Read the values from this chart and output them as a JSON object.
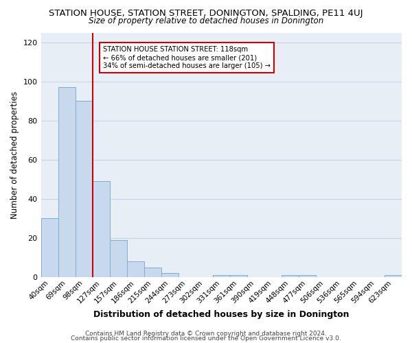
{
  "title": "STATION HOUSE, STATION STREET, DONINGTON, SPALDING, PE11 4UJ",
  "subtitle": "Size of property relative to detached houses in Donington",
  "xlabel": "Distribution of detached houses by size in Donington",
  "ylabel": "Number of detached properties",
  "bar_labels": [
    "40sqm",
    "69sqm",
    "98sqm",
    "127sqm",
    "157sqm",
    "186sqm",
    "215sqm",
    "244sqm",
    "273sqm",
    "302sqm",
    "331sqm",
    "361sqm",
    "390sqm",
    "419sqm",
    "448sqm",
    "477sqm",
    "506sqm",
    "536sqm",
    "565sqm",
    "594sqm",
    "623sqm"
  ],
  "bar_values": [
    30,
    97,
    90,
    49,
    19,
    8,
    5,
    2,
    0,
    0,
    1,
    1,
    0,
    0,
    1,
    1,
    0,
    0,
    0,
    0,
    1
  ],
  "bar_color": "#c9d9ed",
  "bar_edge_color": "#7eacd4",
  "grid_color": "#c8d4e3",
  "plot_bg_color": "#e8eef5",
  "vline_color": "#cc0000",
  "vline_position": 2.5,
  "annotation_title": "STATION HOUSE STATION STREET: 118sqm",
  "annotation_line1": "← 66% of detached houses are smaller (201)",
  "annotation_line2": "34% of semi-detached houses are larger (105) →",
  "annotation_box_color": "#ffffff",
  "annotation_box_edge": "#cc0000",
  "ylim": [
    0,
    125
  ],
  "yticks": [
    0,
    20,
    40,
    60,
    80,
    100,
    120
  ],
  "footer1": "Contains HM Land Registry data © Crown copyright and database right 2024.",
  "footer2": "Contains public sector information licensed under the Open Government Licence v3.0."
}
